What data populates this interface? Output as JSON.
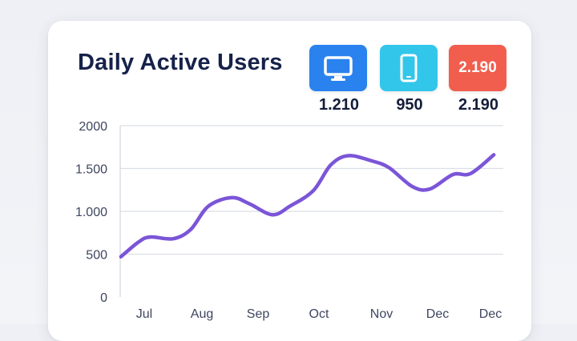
{
  "title": "Daily Active Users",
  "badges": [
    {
      "id": "desktop",
      "icon": "monitor-icon",
      "color": "#2a82ee",
      "label": "",
      "value": "1.210"
    },
    {
      "id": "mobile",
      "icon": "smartphone-icon",
      "color": "#32c6ea",
      "label": "",
      "value": "950"
    },
    {
      "id": "other",
      "icon": "",
      "color": "#f15e4e",
      "label": "2.190",
      "value": "2.190"
    }
  ],
  "chart_data": {
    "type": "line",
    "title": "Daily Active Users",
    "xlabel": "",
    "ylabel": "",
    "x_tick_labels": [
      "Jul",
      "Aug",
      "Sep",
      "Oct",
      "Nov",
      "Dec",
      "Dec"
    ],
    "y_tick_labels": [
      "0",
      "500",
      "1.000",
      "1.500",
      "2000"
    ],
    "y_ticks": [
      0,
      500,
      1000,
      1500,
      2000
    ],
    "ylim": [
      0,
      2000
    ],
    "xlim": [
      0,
      6.6
    ],
    "grid": true,
    "line_color": "#7b55d8",
    "series": [
      {
        "x": [
          -0.4,
          -0.1,
          0.1,
          0.5,
          0.8,
          1.1,
          1.5,
          1.8,
          2.2,
          2.5,
          2.9,
          3.2,
          3.5,
          3.9,
          4.2,
          4.6,
          4.9,
          5.3,
          5.6,
          6.0
        ],
        "values": [
          470,
          640,
          700,
          680,
          790,
          1060,
          1160,
          1090,
          960,
          1060,
          1240,
          1540,
          1650,
          1590,
          1510,
          1290,
          1260,
          1430,
          1440,
          1660
        ]
      }
    ]
  }
}
